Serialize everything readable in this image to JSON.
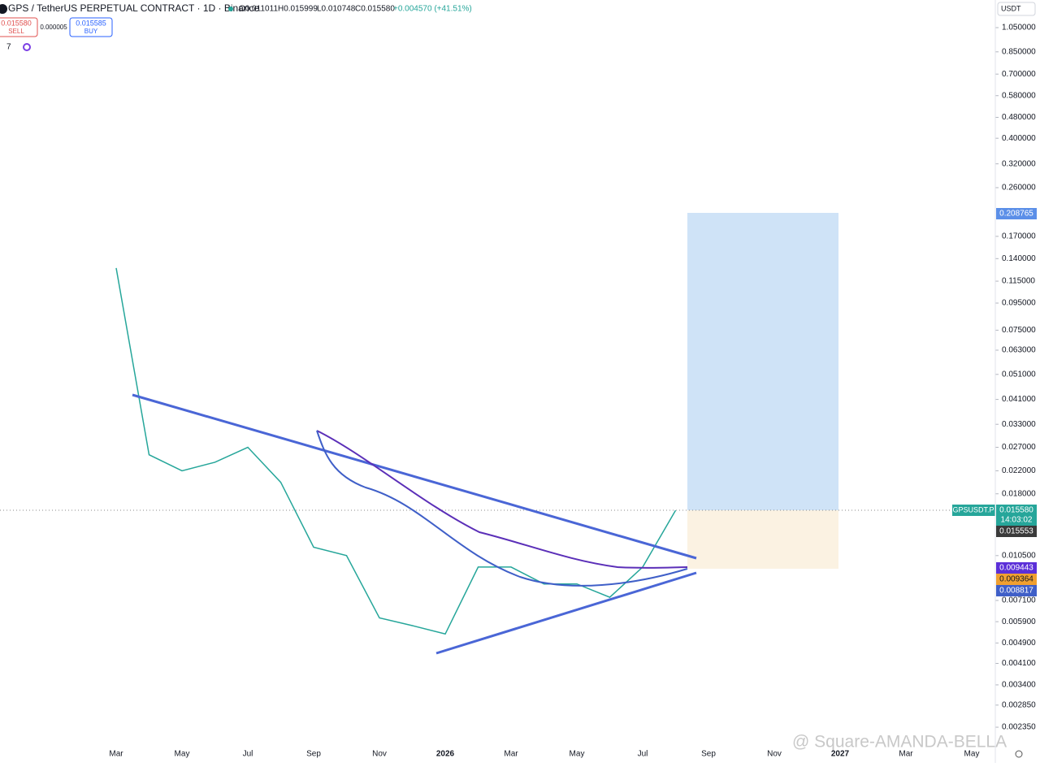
{
  "header": {
    "symbol": "GPS / TetherUS PERPETUAL CONTRACT · 1D · Binance",
    "open": "O0.011011",
    "high": "H0.015999",
    "low": "L0.010748",
    "close": "C0.015580",
    "change": "+0.004570 (+41.51%)",
    "sell_price": "0.015580",
    "sell": "SELL",
    "spread": "0.000005",
    "buy_price": "0.015585",
    "buy": "BUY",
    "indicators": "7",
    "currency": "USDT"
  },
  "badges": {
    "target": "0.208765",
    "ticker": "GPSUSDT.P",
    "last": "0.015580",
    "countdown": "14:03:02",
    "prev": "0.015553",
    "ma1": "0.009443",
    "ma2": "0.009364",
    "ma3": "0.008817"
  },
  "watermark": "@ Square-AMANDA-BELLA",
  "chart_data": {
    "type": "line",
    "log_scale": true,
    "categories": [
      "Mar",
      null,
      "May",
      null,
      "Jul",
      null,
      "Sep",
      null,
      "Nov",
      null,
      "2026",
      null,
      "Mar",
      null,
      "May",
      null,
      "Jul",
      null,
      "Sep",
      null,
      "Nov",
      null,
      "2027",
      null,
      "Mar",
      null,
      "May"
    ],
    "series": [
      {
        "color": "#26a69a",
        "values": [
          0.129,
          0.0253,
          0.022,
          0.0237,
          0.027,
          0.0199,
          0.0113,
          0.0105,
          0.0061,
          0.0057,
          0.0053,
          0.0095,
          0.0095,
          0.0082,
          0.0082,
          0.0073,
          0.0095,
          0.01558,
          null,
          null,
          null,
          null,
          null,
          null,
          null,
          null,
          null
        ]
      }
    ],
    "ylim": [
      0.00204,
      1.336
    ],
    "yticks": [
      {
        "value": 1.05,
        "label": "1.050000"
      },
      {
        "value": 0.85,
        "label": "0.850000"
      },
      {
        "value": 0.7,
        "label": "0.700000"
      },
      {
        "value": 0.58,
        "label": "0.580000"
      },
      {
        "value": 0.48,
        "label": "0.480000"
      },
      {
        "value": 0.4,
        "label": "0.400000"
      },
      {
        "value": 0.32,
        "label": "0.320000"
      },
      {
        "value": 0.26,
        "label": "0.260000"
      },
      {
        "value": 0.17,
        "label": "0.170000"
      },
      {
        "value": 0.14,
        "label": "0.140000"
      },
      {
        "value": 0.115,
        "label": "0.115000"
      },
      {
        "value": 0.095,
        "label": "0.095000"
      },
      {
        "value": 0.075,
        "label": "0.075000"
      },
      {
        "value": 0.063,
        "label": "0.063000"
      },
      {
        "value": 0.051,
        "label": "0.051000"
      },
      {
        "value": 0.041,
        "label": "0.041000"
      },
      {
        "value": 0.033,
        "label": "0.033000"
      },
      {
        "value": 0.027,
        "label": "0.027000"
      },
      {
        "value": 0.022,
        "label": "0.022000"
      },
      {
        "value": 0.018,
        "label": "0.018000"
      },
      {
        "value": 0.0105,
        "label": "0.010500"
      },
      {
        "value": 0.0071,
        "label": "0.007100"
      },
      {
        "value": 0.0059,
        "label": "0.005900"
      },
      {
        "value": 0.0049,
        "label": "0.004900"
      },
      {
        "value": 0.0041,
        "label": "0.004100"
      },
      {
        "value": 0.0034,
        "label": "0.003400"
      },
      {
        "value": 0.00285,
        "label": "0.002850"
      },
      {
        "value": 0.00235,
        "label": "0.002350"
      }
    ]
  }
}
